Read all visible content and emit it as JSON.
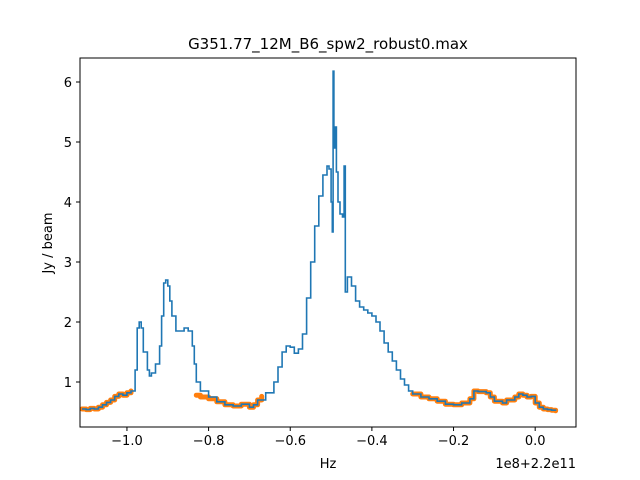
{
  "chart_data": {
    "type": "line",
    "title": "G351.77_12M_B6_spw2_robust0.max",
    "xlabel": "Hz",
    "ylabel": "Jy / beam",
    "offset_text": "1e8+2.2e11",
    "xlim": [
      -1.115,
      0.1
    ],
    "ylim": [
      0.25,
      6.4
    ],
    "grid": false,
    "x_ticks": [
      {
        "value": -1.0,
        "label": "−1.0"
      },
      {
        "value": -0.8,
        "label": "−0.8"
      },
      {
        "value": -0.6,
        "label": "−0.6"
      },
      {
        "value": -0.4,
        "label": "−0.4"
      },
      {
        "value": -0.2,
        "label": "−0.2"
      },
      {
        "value": 0.0,
        "label": "0.0"
      }
    ],
    "y_ticks": [
      {
        "value": 1,
        "label": "1"
      },
      {
        "value": 2,
        "label": "2"
      },
      {
        "value": 3,
        "label": "3"
      },
      {
        "value": 4,
        "label": "4"
      },
      {
        "value": 5,
        "label": "5"
      },
      {
        "value": 6,
        "label": "6"
      }
    ],
    "colors": {
      "spectrum": "#1f77b4",
      "continuum": "#ff7f0e"
    },
    "series": [
      {
        "role": "spectrum",
        "points": [
          [
            -1.11,
            0.55
          ],
          [
            -1.1,
            0.54
          ],
          [
            -1.09,
            0.56
          ],
          [
            -1.08,
            0.55
          ],
          [
            -1.07,
            0.58
          ],
          [
            -1.06,
            0.62
          ],
          [
            -1.05,
            0.66
          ],
          [
            -1.04,
            0.7
          ],
          [
            -1.03,
            0.76
          ],
          [
            -1.02,
            0.8
          ],
          [
            -1.01,
            0.78
          ],
          [
            -1.0,
            0.82
          ],
          [
            -0.99,
            0.85
          ],
          [
            -0.98,
            1.2
          ],
          [
            -0.975,
            1.9
          ],
          [
            -0.97,
            2.0
          ],
          [
            -0.965,
            1.9
          ],
          [
            -0.96,
            1.5
          ],
          [
            -0.95,
            1.2
          ],
          [
            -0.945,
            1.1
          ],
          [
            -0.94,
            1.15
          ],
          [
            -0.93,
            1.3
          ],
          [
            -0.92,
            1.6
          ],
          [
            -0.915,
            2.1
          ],
          [
            -0.91,
            2.65
          ],
          [
            -0.905,
            2.7
          ],
          [
            -0.9,
            2.6
          ],
          [
            -0.895,
            2.35
          ],
          [
            -0.89,
            2.1
          ],
          [
            -0.88,
            1.85
          ],
          [
            -0.87,
            1.85
          ],
          [
            -0.86,
            1.9
          ],
          [
            -0.855,
            1.9
          ],
          [
            -0.85,
            1.85
          ],
          [
            -0.84,
            1.6
          ],
          [
            -0.835,
            1.3
          ],
          [
            -0.83,
            1.0
          ],
          [
            -0.82,
            0.85
          ],
          [
            -0.8,
            0.75
          ],
          [
            -0.78,
            0.67
          ],
          [
            -0.76,
            0.62
          ],
          [
            -0.74,
            0.6
          ],
          [
            -0.72,
            0.63
          ],
          [
            -0.7,
            0.58
          ],
          [
            -0.69,
            0.62
          ],
          [
            -0.68,
            0.7
          ],
          [
            -0.66,
            0.82
          ],
          [
            -0.64,
            1.0
          ],
          [
            -0.63,
            1.25
          ],
          [
            -0.62,
            1.5
          ],
          [
            -0.61,
            1.6
          ],
          [
            -0.6,
            1.58
          ],
          [
            -0.59,
            1.48
          ],
          [
            -0.58,
            1.55
          ],
          [
            -0.57,
            1.8
          ],
          [
            -0.56,
            2.4
          ],
          [
            -0.55,
            3.0
          ],
          [
            -0.54,
            3.6
          ],
          [
            -0.53,
            4.1
          ],
          [
            -0.52,
            4.45
          ],
          [
            -0.51,
            4.6
          ],
          [
            -0.505,
            4.55
          ],
          [
            -0.5,
            4.0
          ],
          [
            -0.497,
            3.5
          ],
          [
            -0.495,
            6.18
          ],
          [
            -0.493,
            4.9
          ],
          [
            -0.49,
            5.25
          ],
          [
            -0.487,
            4.5
          ],
          [
            -0.483,
            4.0
          ],
          [
            -0.478,
            3.8
          ],
          [
            -0.472,
            3.75
          ],
          [
            -0.468,
            4.6
          ],
          [
            -0.465,
            2.5
          ],
          [
            -0.46,
            2.75
          ],
          [
            -0.455,
            2.75
          ],
          [
            -0.45,
            2.6
          ],
          [
            -0.44,
            2.35
          ],
          [
            -0.43,
            2.25
          ],
          [
            -0.42,
            2.2
          ],
          [
            -0.41,
            2.15
          ],
          [
            -0.4,
            2.1
          ],
          [
            -0.39,
            2.0
          ],
          [
            -0.38,
            1.85
          ],
          [
            -0.37,
            1.65
          ],
          [
            -0.36,
            1.5
          ],
          [
            -0.35,
            1.35
          ],
          [
            -0.34,
            1.2
          ],
          [
            -0.33,
            1.05
          ],
          [
            -0.32,
            0.95
          ],
          [
            -0.31,
            0.85
          ],
          [
            -0.3,
            0.8
          ],
          [
            -0.28,
            0.75
          ],
          [
            -0.26,
            0.72
          ],
          [
            -0.24,
            0.68
          ],
          [
            -0.22,
            0.63
          ],
          [
            -0.2,
            0.62
          ],
          [
            -0.18,
            0.65
          ],
          [
            -0.16,
            0.72
          ],
          [
            -0.15,
            0.85
          ],
          [
            -0.14,
            0.84
          ],
          [
            -0.12,
            0.82
          ],
          [
            -0.11,
            0.75
          ],
          [
            -0.1,
            0.68
          ],
          [
            -0.08,
            0.65
          ],
          [
            -0.07,
            0.7
          ],
          [
            -0.05,
            0.75
          ],
          [
            -0.04,
            0.8
          ],
          [
            -0.03,
            0.78
          ],
          [
            -0.02,
            0.75
          ],
          [
            -0.01,
            0.76
          ],
          [
            0.0,
            0.65
          ],
          [
            0.01,
            0.58
          ],
          [
            0.02,
            0.55
          ],
          [
            0.03,
            0.54
          ],
          [
            0.04,
            0.53
          ],
          [
            0.05,
            0.52
          ]
        ]
      },
      {
        "role": "continuum",
        "segments": [
          [
            [
              -1.11,
              0.55
            ],
            [
              -1.1,
              0.54
            ],
            [
              -1.09,
              0.56
            ],
            [
              -1.08,
              0.55
            ],
            [
              -1.07,
              0.58
            ],
            [
              -1.06,
              0.62
            ],
            [
              -1.05,
              0.66
            ],
            [
              -1.04,
              0.7
            ],
            [
              -1.03,
              0.76
            ],
            [
              -1.02,
              0.8
            ],
            [
              -1.01,
              0.78
            ],
            [
              -1.0,
              0.82
            ],
            [
              -0.99,
              0.85
            ]
          ],
          [
            [
              -0.83,
              0.78
            ],
            [
              -0.82,
              0.75
            ],
            [
              -0.8,
              0.72
            ],
            [
              -0.78,
              0.67
            ],
            [
              -0.76,
              0.62
            ],
            [
              -0.74,
              0.6
            ],
            [
              -0.72,
              0.63
            ],
            [
              -0.7,
              0.58
            ],
            [
              -0.69,
              0.62
            ],
            [
              -0.68,
              0.7
            ],
            [
              -0.67,
              0.76
            ]
          ],
          [
            [
              -0.3,
              0.8
            ],
            [
              -0.28,
              0.75
            ],
            [
              -0.26,
              0.72
            ],
            [
              -0.24,
              0.68
            ],
            [
              -0.22,
              0.63
            ],
            [
              -0.2,
              0.62
            ],
            [
              -0.18,
              0.65
            ],
            [
              -0.16,
              0.72
            ],
            [
              -0.15,
              0.85
            ],
            [
              -0.14,
              0.84
            ],
            [
              -0.12,
              0.82
            ],
            [
              -0.11,
              0.75
            ],
            [
              -0.1,
              0.68
            ],
            [
              -0.08,
              0.65
            ],
            [
              -0.07,
              0.7
            ],
            [
              -0.05,
              0.75
            ],
            [
              -0.04,
              0.8
            ],
            [
              -0.03,
              0.78
            ],
            [
              -0.02,
              0.75
            ],
            [
              -0.01,
              0.76
            ],
            [
              0.0,
              0.65
            ],
            [
              0.01,
              0.58
            ],
            [
              0.02,
              0.55
            ],
            [
              0.03,
              0.54
            ],
            [
              0.04,
              0.53
            ],
            [
              0.05,
              0.52
            ]
          ]
        ]
      }
    ]
  }
}
